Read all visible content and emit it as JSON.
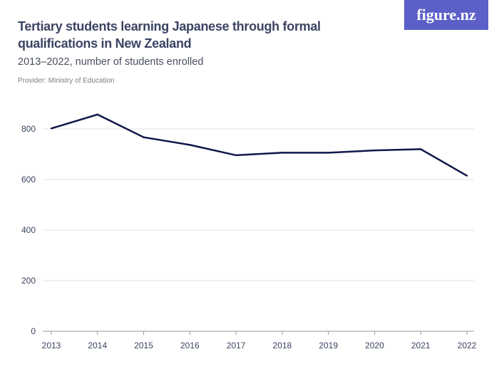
{
  "logo": "figure.nz",
  "chart_data": {
    "type": "line",
    "title": "Tertiary students learning Japanese through formal qualifications in New Zealand",
    "subtitle": "2013–2022, number of students enrolled",
    "provider": "Provider: Ministry of Education",
    "x": [
      "2013",
      "2014",
      "2015",
      "2016",
      "2017",
      "2018",
      "2019",
      "2020",
      "2021",
      "2022"
    ],
    "series": [
      {
        "values": [
          802,
          857,
          767,
          737,
          696,
          706,
          706,
          715,
          720,
          615
        ],
        "color": "#10174a"
      }
    ],
    "yticks": [
      0,
      200,
      400,
      600,
      800
    ],
    "ylim": [
      0,
      800
    ],
    "grid": true,
    "xlabel": "",
    "ylabel": ""
  }
}
